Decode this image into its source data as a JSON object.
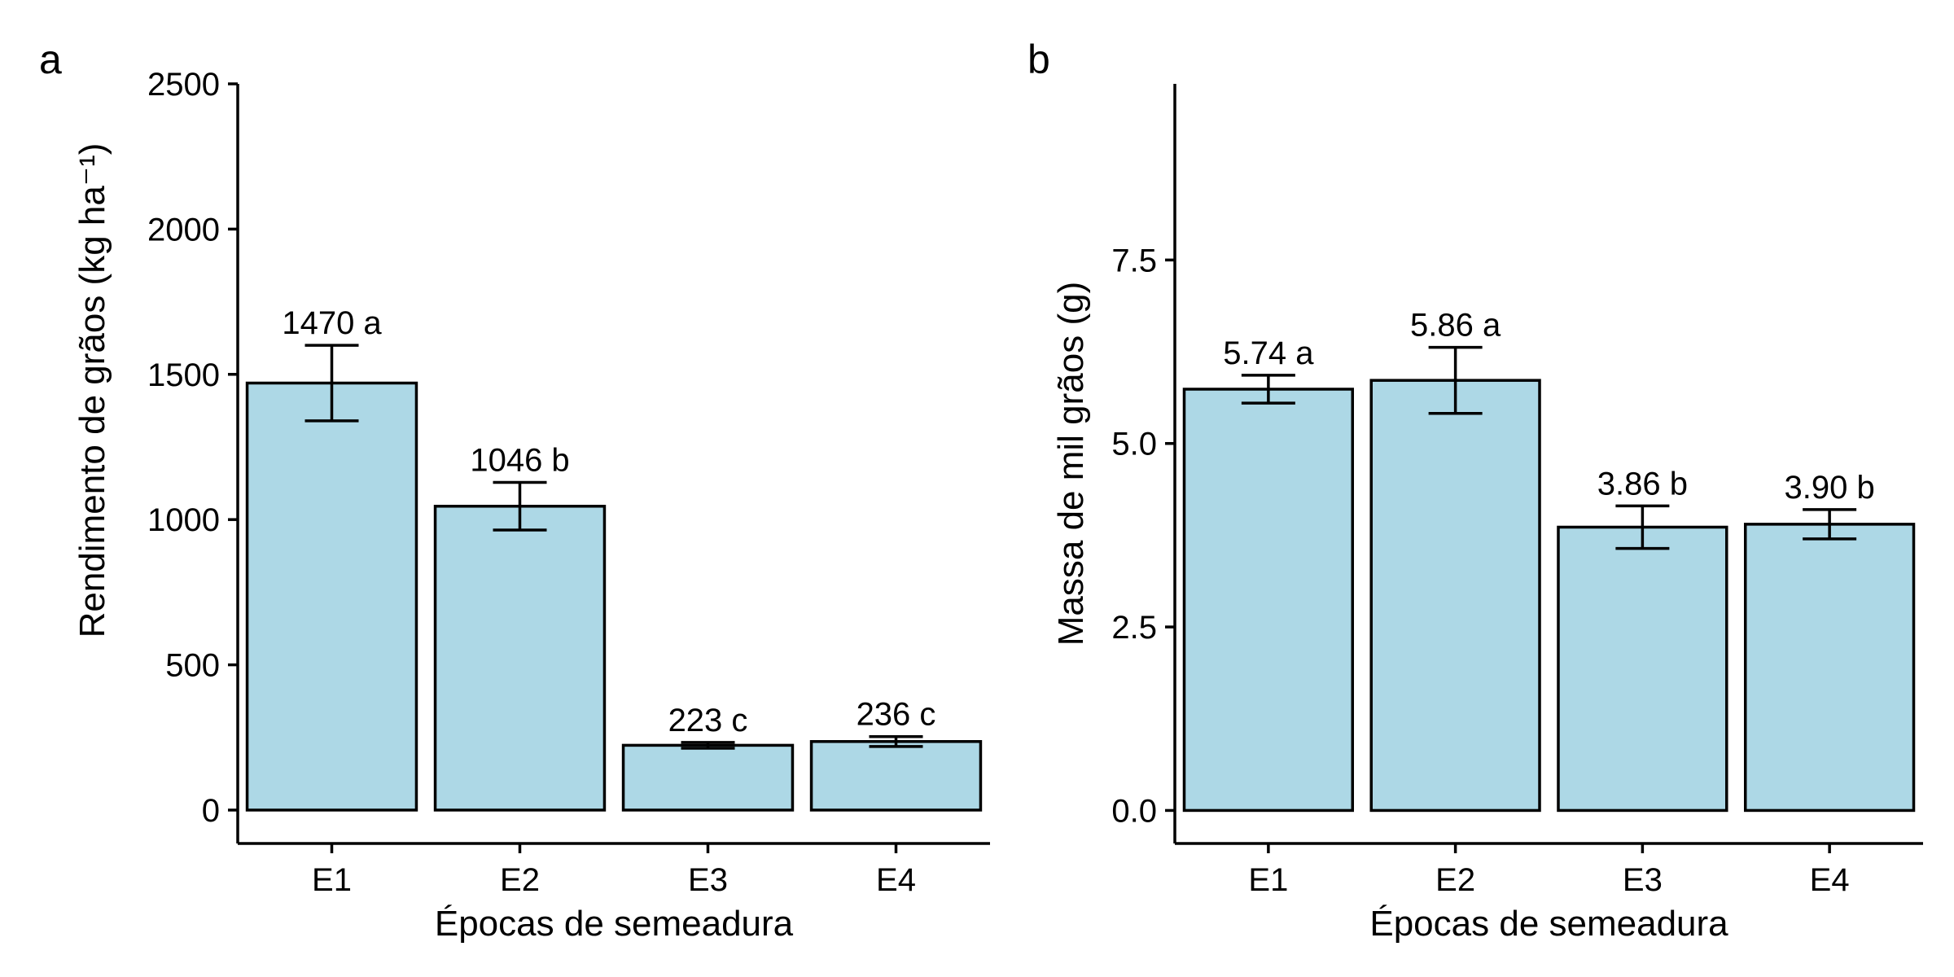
{
  "chart_data": [
    {
      "type": "bar",
      "panel_label": "a",
      "categories": [
        "E1",
        "E2",
        "E3",
        "E4"
      ],
      "values": [
        1470,
        1046,
        223,
        236
      ],
      "errors": [
        130,
        82,
        10,
        17
      ],
      "value_labels": [
        "1470 a",
        "1046 b",
        "223 c",
        "236 c"
      ],
      "xlabel": "Épocas de semeadura",
      "ylabel": "Rendimento de grãos (kg ha⁻¹)",
      "ylim": [
        -115,
        2500
      ],
      "yticks": [
        0,
        500,
        1000,
        1500,
        2000,
        2500
      ],
      "ytick_labels": [
        "0",
        "500",
        "1000",
        "1500",
        "2000",
        "2500"
      ],
      "bar_color": "#add8e6",
      "grid": false,
      "legend": "none"
    },
    {
      "type": "bar",
      "panel_label": "b",
      "categories": [
        "E1",
        "E2",
        "E3",
        "E4"
      ],
      "values": [
        5.74,
        5.86,
        3.86,
        3.9
      ],
      "errors": [
        0.19,
        0.45,
        0.29,
        0.2
      ],
      "value_labels": [
        "5.74 a",
        "5.86 a",
        "3.86 b",
        "3.90 b"
      ],
      "xlabel": "Épocas de semeadura",
      "ylabel": "Massa de mil grãos (g)",
      "ylim": [
        -0.45,
        9.9
      ],
      "yticks": [
        0,
        2.5,
        5,
        7.5
      ],
      "ytick_labels": [
        "0.0",
        "2.5",
        "5.0",
        "7.5"
      ],
      "bar_color": "#add8e6",
      "grid": false,
      "legend": "none"
    }
  ]
}
